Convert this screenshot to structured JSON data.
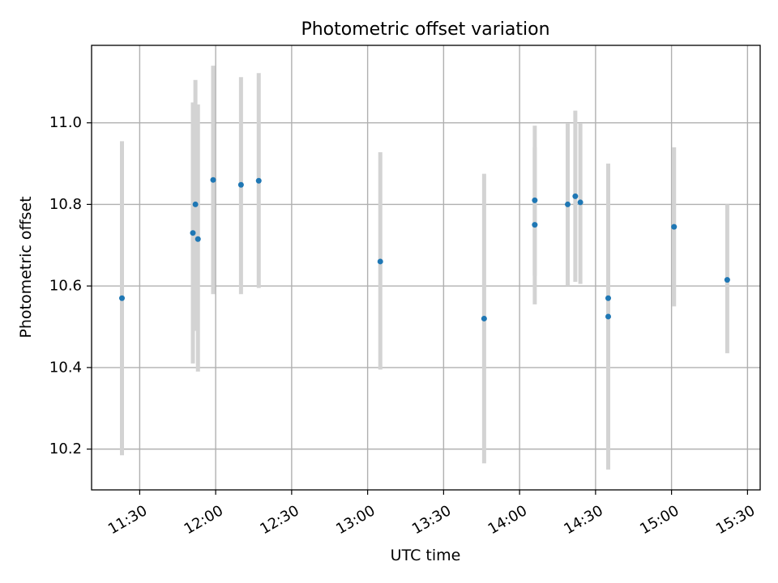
{
  "chart_data": {
    "type": "scatter",
    "title": "Photometric offset variation",
    "xlabel": "UTC time",
    "ylabel": "Photometric offset",
    "grid": true,
    "xlim": [
      "11:11",
      "15:35"
    ],
    "ylim": [
      10.1,
      11.19
    ],
    "xticks": [
      "11:30",
      "12:00",
      "12:30",
      "13:00",
      "13:30",
      "14:00",
      "14:30",
      "15:00",
      "15:30"
    ],
    "yticks": [
      "10.2",
      "10.4",
      "10.6",
      "10.8",
      "11.0"
    ],
    "colors": {
      "point": "#1f77b4",
      "errorbar": "#d3d3d3",
      "grid": "#b0b0b0"
    },
    "series": [
      {
        "name": "offset",
        "points": [
          {
            "t": "11:23",
            "y": 10.57,
            "lo": 10.185,
            "hi": 10.955
          },
          {
            "t": "11:51",
            "y": 10.73,
            "lo": 10.41,
            "hi": 11.05
          },
          {
            "t": "11:52",
            "y": 10.8,
            "lo": 10.49,
            "hi": 11.105
          },
          {
            "t": "11:53",
            "y": 10.715,
            "lo": 10.39,
            "hi": 11.045
          },
          {
            "t": "11:59",
            "y": 10.86,
            "lo": 10.58,
            "hi": 11.14
          },
          {
            "t": "12:10",
            "y": 10.848,
            "lo": 10.58,
            "hi": 11.112
          },
          {
            "t": "12:17",
            "y": 10.858,
            "lo": 10.595,
            "hi": 11.122
          },
          {
            "t": "13:05",
            "y": 10.66,
            "lo": 10.395,
            "hi": 10.928
          },
          {
            "t": "13:46",
            "y": 10.52,
            "lo": 10.165,
            "hi": 10.875
          },
          {
            "t": "14:06",
            "y": 10.81,
            "lo": 10.625,
            "hi": 10.993
          },
          {
            "t": "14:06",
            "y": 10.75,
            "lo": 10.555,
            "hi": 10.94
          },
          {
            "t": "14:19",
            "y": 10.8,
            "lo": 10.6,
            "hi": 10.998
          },
          {
            "t": "14:22",
            "y": 10.82,
            "lo": 10.61,
            "hi": 11.03
          },
          {
            "t": "14:24",
            "y": 10.805,
            "lo": 10.605,
            "hi": 10.998
          },
          {
            "t": "14:35",
            "y": 10.525,
            "lo": 10.15,
            "hi": 10.9
          },
          {
            "t": "14:35",
            "y": 10.57,
            "lo": 10.235,
            "hi": 10.9
          },
          {
            "t": "15:01",
            "y": 10.745,
            "lo": 10.55,
            "hi": 10.94
          },
          {
            "t": "15:22",
            "y": 10.615,
            "lo": 10.435,
            "hi": 10.8
          }
        ]
      }
    ]
  }
}
